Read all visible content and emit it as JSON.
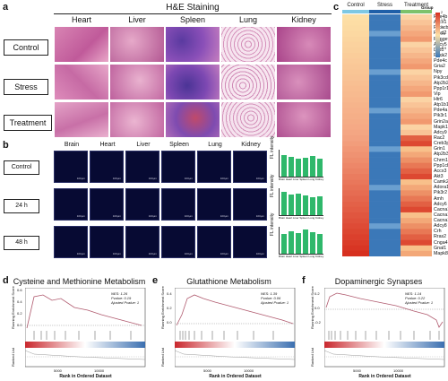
{
  "panel_a": {
    "label": "a",
    "title": "H&E Staining",
    "columns": [
      "Heart",
      "Liver",
      "Spleen",
      "Lung",
      "Kidney"
    ],
    "rows": [
      "Control",
      "Stress",
      "Treatment"
    ]
  },
  "panel_b": {
    "label": "b",
    "columns": [
      "Brain",
      "Heart",
      "Liver",
      "Spleen",
      "Lung",
      "Kidney"
    ],
    "rows": [
      "Control",
      "24 h",
      "48 h"
    ],
    "scale_text": "100μm",
    "chart_ylabel": "FL intensity",
    "chart_categories": "Brain Heart Liver Spleen Lung Kidney"
  },
  "panel_c": {
    "label": "c",
    "groups": [
      "Control",
      "Stress",
      "Treatment"
    ],
    "legend_title": "Group",
    "color_scale": [
      "2",
      "1.5",
      "1",
      "0.5",
      "0",
      "-0.5",
      "-1"
    ],
    "genes": [
      "Pde4b",
      "Accx1",
      "Prkacb",
      "Fxyd2",
      "Rapgef4",
      "Adcy5",
      "Drd1",
      "Rock2",
      "Pde4c",
      "Gria2",
      "Npy",
      "Pik3cd",
      "Atp2b2",
      "Ppp1r12a",
      "Vip",
      "Htr6",
      "Atp1b1",
      "Pde4a",
      "Pik3r1",
      "Grin2a",
      "Mapk10",
      "Adcy9",
      "Rac2",
      "Creb3p",
      "Grin1",
      "Atp2b3",
      "Chrm1",
      "Ppp1cb",
      "Accx3",
      "Akt3",
      "Camk2g",
      "Adora1",
      "Pik3r2",
      "Amh",
      "Adcy6",
      "Cacna1d",
      "Cacna1a",
      "Cacna1f",
      "Adcy8",
      "Crh",
      "Rras2",
      "Cnga4",
      "Gnal1",
      "Mapk8"
    ],
    "colors": {
      "high": "#d7301f",
      "mid": "#fde0a6",
      "low": "#3b78b8",
      "control_bar": "#7ec8e3",
      "stress_bar": "#1f5fa8",
      "treat_bar": "#7cc26b"
    }
  },
  "panel_d": {
    "label": "d",
    "title": "Cysteine and Methionine Metabolism",
    "ylabel": "Running Enrichment Score",
    "ylabel2": "Ranked List",
    "xlabel": "Rank in Ordered Dataset",
    "stats": [
      "NES: 1.26",
      "Pvalue: 0.19",
      "Ajusted Pvalue: 1"
    ],
    "yticks": [
      "0.6",
      "0.4",
      "0.2",
      "0.0"
    ],
    "xticks": [
      "5000",
      "10000"
    ]
  },
  "panel_e": {
    "label": "e",
    "title": "Glutathione Metabolism",
    "ylabel": "Running Enrichment Score",
    "ylabel2": "Ranked List",
    "xlabel": "Rank in Ordered Dataset",
    "stats": [
      "NES: 1.39",
      "Pvalue: 0.06",
      "Ajusted Pvalue: 1"
    ],
    "yticks": [
      "0.4",
      "0.2",
      "0.0"
    ],
    "xticks": [
      "5000",
      "10000"
    ]
  },
  "panel_f": {
    "label": "f",
    "title": "Dopaminergic Synapses",
    "ylabel": "Running Enrichment Score",
    "ylabel2": "Ranked List",
    "xlabel": "Rank in Ordered Dataset",
    "stats": [
      "NES: 1.14",
      "Pvalue: 0.22",
      "Ajusted Pvalue: 1"
    ],
    "yticks": [
      "0.2",
      "0.0",
      "-0.2"
    ],
    "xticks": [
      "5000",
      "10000"
    ]
  }
}
